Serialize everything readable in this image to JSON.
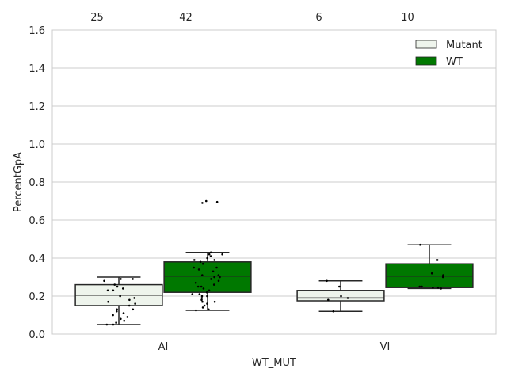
{
  "chart_data": {
    "type": "box",
    "xlabel": "WT_MUT",
    "ylabel": "PercentGpA",
    "ylim": [
      0,
      1.6
    ],
    "yticks": [
      "0.0",
      "0.2",
      "0.4",
      "0.6",
      "0.8",
      "1.0",
      "1.2",
      "1.4",
      "1.6"
    ],
    "categories": [
      "AI",
      "VI"
    ],
    "grid": "horizontal",
    "legend_position": "top-right",
    "series": [
      {
        "name": "Mutant",
        "color": "#eef4ec",
        "boxes": [
          {
            "category": "AI",
            "count_label": "25",
            "whisker_low": 0.05,
            "q1": 0.15,
            "median": 0.205,
            "q3": 0.26,
            "whisker_high": 0.3,
            "points": [
              0.29,
              0.28,
              0.29,
              0.26,
              0.25,
              0.24,
              0.23,
              0.23,
              0.2,
              0.19,
              0.18,
              0.17,
              0.16,
              0.15,
              0.13,
              0.13,
              0.12,
              0.11,
              0.1,
              0.09,
              0.08,
              0.07,
              0.06,
              0.05,
              0.05
            ]
          },
          {
            "category": "VI",
            "count_label": "6",
            "whisker_low": 0.12,
            "q1": 0.175,
            "median": 0.19,
            "q3": 0.23,
            "whisker_high": 0.28,
            "points": [
              0.28,
              0.25,
              0.2,
              0.19,
              0.18,
              0.12
            ]
          }
        ]
      },
      {
        "name": "WT",
        "color": "#007800",
        "boxes": [
          {
            "category": "AI",
            "count_label": "42",
            "whisker_low": 0.125,
            "q1": 0.22,
            "median": 0.305,
            "q3": 0.38,
            "whisker_high": 0.43,
            "outliers": [
              0.7,
              0.69,
              0.695
            ],
            "points": [
              0.43,
              0.42,
              0.42,
              0.41,
              0.4,
              0.39,
              0.39,
              0.38,
              0.37,
              0.35,
              0.35,
              0.34,
              0.33,
              0.31,
              0.31,
              0.3,
              0.3,
              0.29,
              0.28,
              0.27,
              0.26,
              0.25,
              0.25,
              0.24,
              0.23,
              0.22,
              0.21,
              0.21,
              0.2,
              0.2,
              0.19,
              0.18,
              0.17,
              0.17,
              0.16,
              0.15,
              0.14,
              0.13,
              0.125
            ]
          },
          {
            "category": "VI",
            "count_label": "10",
            "whisker_low": 0.24,
            "q1": 0.245,
            "median": 0.305,
            "q3": 0.37,
            "whisker_high": 0.47,
            "points": [
              0.47,
              0.39,
              0.32,
              0.31,
              0.3,
              0.25,
              0.25,
              0.245,
              0.245,
              0.24
            ]
          }
        ]
      }
    ]
  }
}
